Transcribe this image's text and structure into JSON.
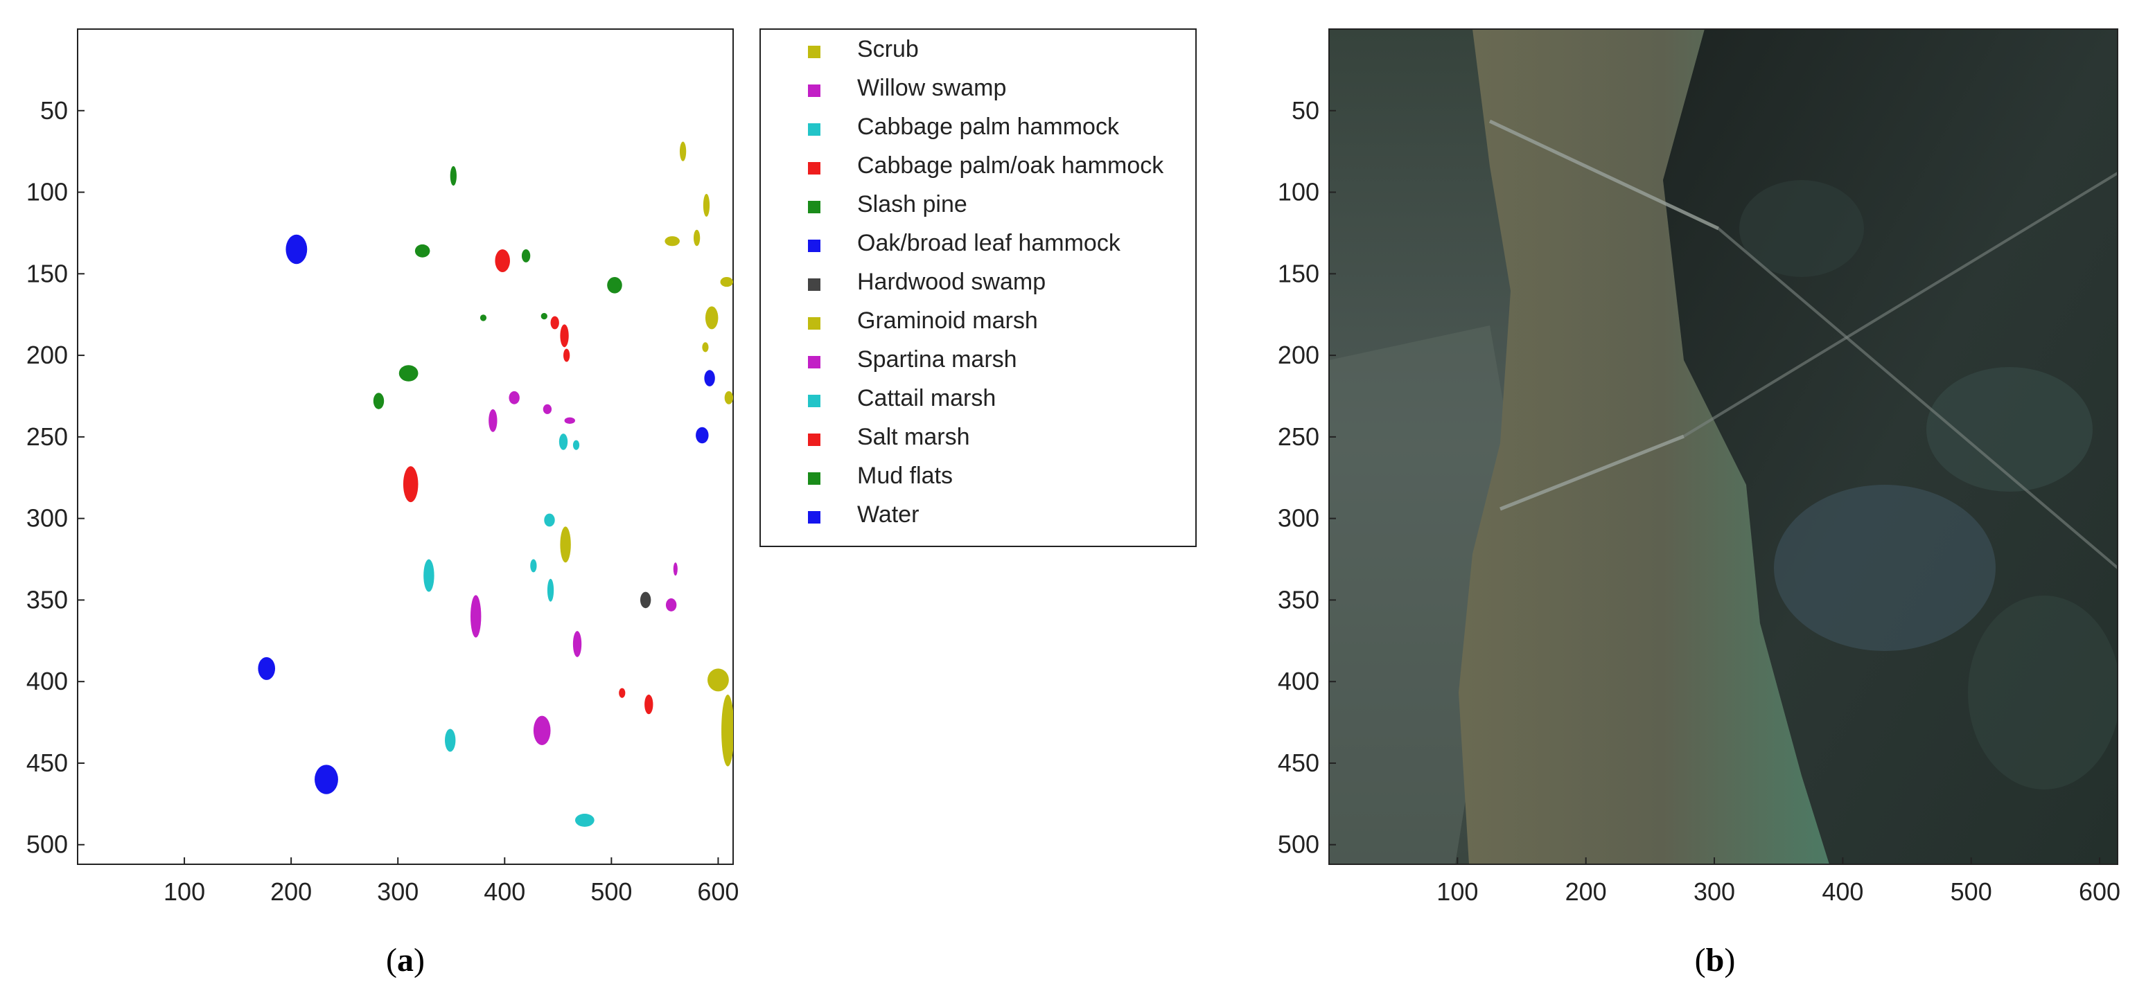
{
  "chart_data": [
    {
      "type": "scatter",
      "panel": "(a)",
      "caption_pre": "(",
      "caption_letter": "a",
      "caption_post": ")",
      "xlim": [
        0,
        614
      ],
      "ylim": [
        512,
        0
      ],
      "x_ticks": [
        100,
        200,
        300,
        400,
        500,
        600
      ],
      "y_ticks": [
        50,
        100,
        150,
        200,
        250,
        300,
        350,
        400,
        450,
        500
      ],
      "grid": false,
      "legend_position": "right-outside",
      "legend": [
        {
          "name": "Scrub",
          "color": "#c0bb0f"
        },
        {
          "name": "Willow swamp",
          "color": "#c21fc6"
        },
        {
          "name": "Cabbage palm hammock",
          "color": "#22c4c8"
        },
        {
          "name": "Cabbage palm/oak hammock",
          "color": "#ee1d1d"
        },
        {
          "name": "Slash pine",
          "color": "#1a8c1a"
        },
        {
          "name": "Oak/broad leaf hammock",
          "color": "#1515ee"
        },
        {
          "name": "Hardwood swamp",
          "color": "#444444"
        },
        {
          "name": "Graminoid marsh",
          "color": "#c0bb0f"
        },
        {
          "name": "Spartina marsh",
          "color": "#c21fc6"
        },
        {
          "name": "Cattail marsh",
          "color": "#22c4c8"
        },
        {
          "name": "Salt marsh",
          "color": "#ee1d1d"
        },
        {
          "name": "Mud flats",
          "color": "#1a8c1a"
        },
        {
          "name": "Water",
          "color": "#1515ee"
        }
      ],
      "regions": [
        {
          "class": "Oak/broad leaf hammock",
          "x": 205,
          "y": 135,
          "rx": 10,
          "ry": 9
        },
        {
          "class": "Water",
          "x": 177,
          "y": 392,
          "rx": 8,
          "ry": 7
        },
        {
          "class": "Water",
          "x": 233,
          "y": 460,
          "rx": 11,
          "ry": 9
        },
        {
          "class": "Water",
          "x": 592,
          "y": 214,
          "rx": 5,
          "ry": 5
        },
        {
          "class": "Water",
          "x": 585,
          "y": 249,
          "rx": 6,
          "ry": 5
        },
        {
          "class": "Slash pine",
          "x": 352,
          "y": 90,
          "rx": 3,
          "ry": 6
        },
        {
          "class": "Slash pine",
          "x": 323,
          "y": 136,
          "rx": 7,
          "ry": 4
        },
        {
          "class": "Slash pine",
          "x": 420,
          "y": 139,
          "rx": 4,
          "ry": 4
        },
        {
          "class": "Slash pine",
          "x": 503,
          "y": 157,
          "rx": 7,
          "ry": 5
        },
        {
          "class": "Mud flats",
          "x": 310,
          "y": 211,
          "rx": 9,
          "ry": 5
        },
        {
          "class": "Mud flats",
          "x": 282,
          "y": 228,
          "rx": 5,
          "ry": 5
        },
        {
          "class": "Mud flats",
          "x": 380,
          "y": 177,
          "rx": 3,
          "ry": 2
        },
        {
          "class": "Mud flats",
          "x": 437,
          "y": 176,
          "rx": 3,
          "ry": 2
        },
        {
          "class": "Cabbage palm/oak hammock",
          "x": 398,
          "y": 142,
          "rx": 7,
          "ry": 7
        },
        {
          "class": "Salt marsh",
          "x": 312,
          "y": 279,
          "rx": 7,
          "ry": 11
        },
        {
          "class": "Salt marsh",
          "x": 447,
          "y": 180,
          "rx": 4,
          "ry": 4
        },
        {
          "class": "Salt marsh",
          "x": 456,
          "y": 188,
          "rx": 4,
          "ry": 7
        },
        {
          "class": "Salt marsh",
          "x": 458,
          "y": 200,
          "rx": 3,
          "ry": 4
        },
        {
          "class": "Salt marsh",
          "x": 535,
          "y": 414,
          "rx": 4,
          "ry": 6
        },
        {
          "class": "Salt marsh",
          "x": 510,
          "y": 407,
          "rx": 3,
          "ry": 3
        },
        {
          "class": "Willow swamp",
          "x": 409,
          "y": 226,
          "rx": 5,
          "ry": 4
        },
        {
          "class": "Willow swamp",
          "x": 389,
          "y": 240,
          "rx": 4,
          "ry": 7
        },
        {
          "class": "Willow swamp",
          "x": 440,
          "y": 233,
          "rx": 4,
          "ry": 3
        },
        {
          "class": "Willow swamp",
          "x": 461,
          "y": 240,
          "rx": 5,
          "ry": 2
        },
        {
          "class": "Spartina marsh",
          "x": 373,
          "y": 360,
          "rx": 5,
          "ry": 13
        },
        {
          "class": "Spartina marsh",
          "x": 468,
          "y": 377,
          "rx": 4,
          "ry": 8
        },
        {
          "class": "Spartina marsh",
          "x": 435,
          "y": 430,
          "rx": 8,
          "ry": 9
        },
        {
          "class": "Spartina marsh",
          "x": 556,
          "y": 353,
          "rx": 5,
          "ry": 4
        },
        {
          "class": "Spartina marsh",
          "x": 560,
          "y": 331,
          "rx": 2,
          "ry": 4
        },
        {
          "class": "Cabbage palm hammock",
          "x": 455,
          "y": 253,
          "rx": 4,
          "ry": 5
        },
        {
          "class": "Cabbage palm hammock",
          "x": 467,
          "y": 255,
          "rx": 3,
          "ry": 3
        },
        {
          "class": "Cattail marsh",
          "x": 442,
          "y": 301,
          "rx": 5,
          "ry": 4
        },
        {
          "class": "Cattail marsh",
          "x": 329,
          "y": 335,
          "rx": 5,
          "ry": 10
        },
        {
          "class": "Cattail marsh",
          "x": 427,
          "y": 329,
          "rx": 3,
          "ry": 4
        },
        {
          "class": "Cattail marsh",
          "x": 443,
          "y": 344,
          "rx": 3,
          "ry": 7
        },
        {
          "class": "Cattail marsh",
          "x": 349,
          "y": 436,
          "rx": 5,
          "ry": 7
        },
        {
          "class": "Cattail marsh",
          "x": 475,
          "y": 485,
          "rx": 9,
          "ry": 4
        },
        {
          "class": "Scrub",
          "x": 567,
          "y": 75,
          "rx": 3,
          "ry": 6
        },
        {
          "class": "Scrub",
          "x": 557,
          "y": 130,
          "rx": 7,
          "ry": 3
        },
        {
          "class": "Scrub",
          "x": 589,
          "y": 108,
          "rx": 3,
          "ry": 7
        },
        {
          "class": "Scrub",
          "x": 580,
          "y": 128,
          "rx": 3,
          "ry": 5
        },
        {
          "class": "Scrub",
          "x": 608,
          "y": 155,
          "rx": 6,
          "ry": 3
        },
        {
          "class": "Scrub",
          "x": 594,
          "y": 177,
          "rx": 6,
          "ry": 7
        },
        {
          "class": "Scrub",
          "x": 588,
          "y": 195,
          "rx": 3,
          "ry": 3
        },
        {
          "class": "Scrub",
          "x": 610,
          "y": 226,
          "rx": 4,
          "ry": 4
        },
        {
          "class": "Graminoid marsh",
          "x": 457,
          "y": 316,
          "rx": 5,
          "ry": 11
        },
        {
          "class": "Graminoid marsh",
          "x": 600,
          "y": 399,
          "rx": 10,
          "ry": 7
        },
        {
          "class": "Graminoid marsh",
          "x": 609,
          "y": 430,
          "rx": 6,
          "ry": 22
        },
        {
          "class": "Hardwood swamp",
          "x": 532,
          "y": 350,
          "rx": 5,
          "ry": 5
        }
      ]
    },
    {
      "type": "image",
      "panel": "(b)",
      "caption_pre": "(",
      "caption_letter": "b",
      "caption_post": ")",
      "xlim": [
        0,
        614
      ],
      "ylim": [
        512,
        0
      ],
      "x_ticks": [
        100,
        200,
        300,
        400,
        500,
        600
      ],
      "y_ticks": [
        50,
        100,
        150,
        200,
        250,
        300,
        350,
        400,
        450,
        500
      ],
      "description_colors": {
        "water": "#5a5c48",
        "land_west": "#3f4a44",
        "land_east": "#222a28"
      }
    }
  ]
}
